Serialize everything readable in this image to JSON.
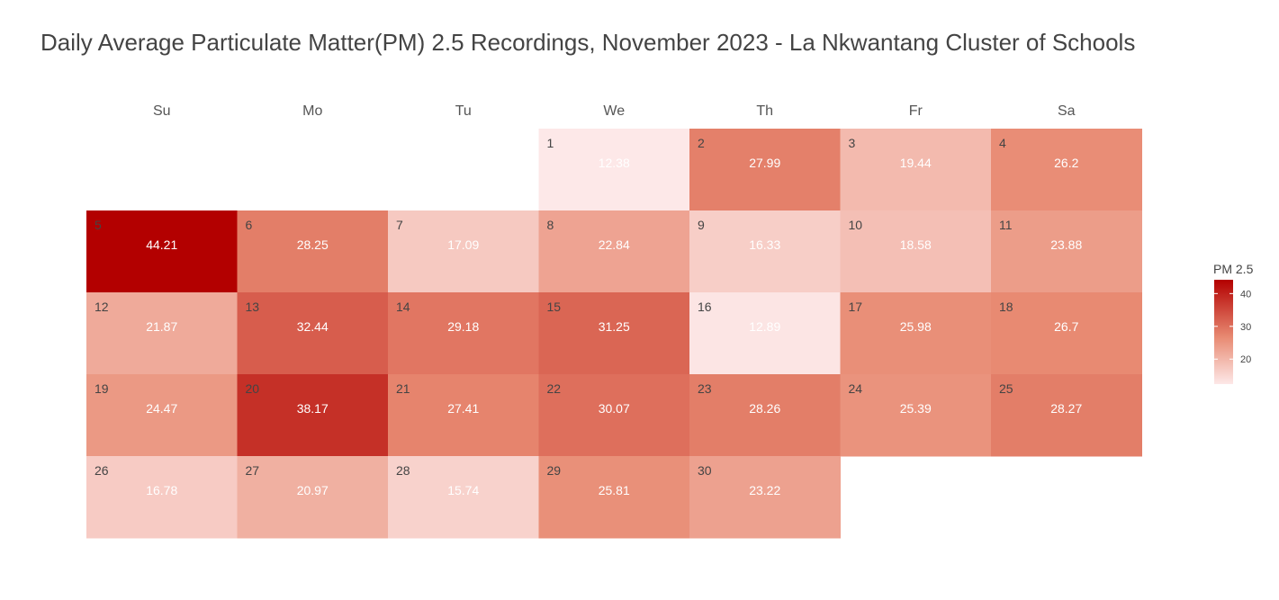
{
  "chart_data": {
    "type": "heatmap",
    "title": "Daily Average Particulate Matter(PM) 2.5 Recordings, November 2023 - La Nkwantang Cluster of Schools",
    "weekdays": [
      "Su",
      "Mo",
      "Tu",
      "We",
      "Th",
      "Fr",
      "Sa"
    ],
    "first_weekday_index": 3,
    "days": [
      1,
      2,
      3,
      4,
      5,
      6,
      7,
      8,
      9,
      10,
      11,
      12,
      13,
      14,
      15,
      16,
      17,
      18,
      19,
      20,
      21,
      22,
      23,
      24,
      25,
      26,
      27,
      28,
      29,
      30
    ],
    "values": [
      12.38,
      27.99,
      19.44,
      26.2,
      44.21,
      28.25,
      17.09,
      22.84,
      16.33,
      18.58,
      23.88,
      21.87,
      32.44,
      29.18,
      31.25,
      12.89,
      25.98,
      26.7,
      24.47,
      38.17,
      27.41,
      30.07,
      28.26,
      25.39,
      28.27,
      16.78,
      20.97,
      15.74,
      25.81,
      23.22
    ],
    "legend": {
      "title": "PM 2.5",
      "ticks": [
        20,
        30,
        40
      ],
      "range": [
        12.38,
        44.21
      ],
      "low_color": "#fde8e8",
      "mid_color": "#e88a72",
      "high_color": "#b30000",
      "placement": "right"
    }
  }
}
